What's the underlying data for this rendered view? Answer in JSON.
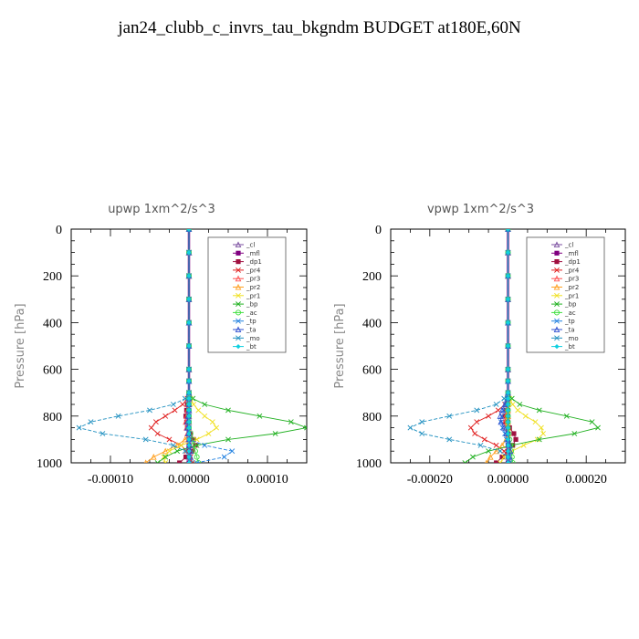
{
  "title": "jan24_clubb_c_invrs_tau_bkgndm  BUDGET at180E,60N",
  "chart_data": [
    {
      "type": "line",
      "title": "upwp   1xm^2/s^3",
      "ylabel": "Pressure [hPa]",
      "xlabel": "",
      "ylim": [
        1000,
        0
      ],
      "xlim": [
        -0.00015,
        0.00015
      ],
      "y_ticks": [
        0,
        200,
        400,
        600,
        800,
        1000
      ],
      "x_ticks": [
        -0.0001,
        0,
        0.0001
      ],
      "x_tick_labels": [
        "-0.00010",
        "0.00000",
        "0.00010"
      ],
      "legend_position": "top-right",
      "y": [
        0,
        100,
        200,
        300,
        400,
        500,
        600,
        650,
        700,
        725,
        750,
        775,
        800,
        825,
        850,
        875,
        900,
        925,
        950,
        975,
        1000
      ],
      "series": [
        {
          "name": "_cl",
          "color": "#7b4fa0",
          "marker": "triangle",
          "values": [
            0,
            0,
            0,
            0,
            0,
            0,
            0,
            0,
            0,
            0,
            0,
            0,
            0,
            0,
            0,
            0,
            0,
            0,
            0,
            0,
            0
          ]
        },
        {
          "name": "_mfl",
          "color": "#800080",
          "marker": "square",
          "values": [
            0,
            0,
            0,
            0,
            0,
            0,
            0,
            0,
            0,
            0,
            0,
            0,
            0,
            0,
            0,
            0,
            0,
            0,
            0,
            0,
            0
          ]
        },
        {
          "name": "_dp1",
          "color": "#a01040",
          "marker": "square",
          "values": [
            0,
            0,
            0,
            0,
            0,
            0,
            0,
            0,
            0,
            -1e-06,
            -2e-06,
            -3e-06,
            -4e-06,
            -3e-06,
            -2e-06,
            2e-06,
            6e-06,
            8e-06,
            4e-06,
            -4e-06,
            -1.2e-05
          ]
        },
        {
          "name": "_pr4",
          "color": "#e02020",
          "marker": "x",
          "values": [
            0,
            0,
            0,
            0,
            0,
            0,
            0,
            0,
            0,
            -2e-06,
            -8e-06,
            -1.8e-05,
            -3e-05,
            -4.2e-05,
            -4.8e-05,
            -4e-05,
            -2.5e-05,
            -1e-05,
            -3e-06,
            2e-06,
            4e-06
          ]
        },
        {
          "name": "_pr3",
          "color": "#ff5050",
          "marker": "triangle",
          "values": [
            0,
            0,
            0,
            0,
            0,
            0,
            0,
            0,
            0,
            0,
            -1e-06,
            -2e-06,
            -3e-06,
            -4e-06,
            -3e-06,
            -2e-06,
            -1e-06,
            1e-06,
            2e-06,
            2e-06,
            1e-06
          ]
        },
        {
          "name": "_pr2",
          "color": "#ffa020",
          "marker": "triangle",
          "values": [
            0,
            0,
            0,
            0,
            0,
            0,
            0,
            0,
            0,
            0,
            0,
            0,
            0,
            0,
            0,
            0,
            -5e-06,
            -1.5e-05,
            -3e-05,
            -4.5e-05,
            -5.5e-05
          ]
        },
        {
          "name": "_pr1",
          "color": "#f0e020",
          "marker": "x",
          "values": [
            0,
            0,
            0,
            0,
            0,
            0,
            0,
            0,
            0,
            2e-06,
            6e-06,
            1.2e-05,
            2e-05,
            3e-05,
            3.5e-05,
            2.5e-05,
            1e-05,
            -1e-05,
            -2.5e-05,
            -3.2e-05,
            -3e-05
          ]
        },
        {
          "name": "_bp",
          "color": "#20b020",
          "marker": "x",
          "values": [
            0,
            0,
            0,
            0,
            0,
            0,
            0,
            0,
            0,
            5e-06,
            2e-05,
            5e-05,
            9e-05,
            0.00013,
            0.00015,
            0.00011,
            5e-05,
            1e-05,
            -1.5e-05,
            -3e-05,
            -4e-05
          ]
        },
        {
          "name": "_ac",
          "color": "#40e040",
          "marker": "circle",
          "values": [
            0,
            0,
            0,
            0,
            0,
            0,
            0,
            0,
            0,
            0,
            0,
            0,
            0,
            0,
            0,
            2e-06,
            4e-06,
            6e-06,
            8e-06,
            1e-05,
            1.2e-05
          ]
        },
        {
          "name": "_tp",
          "color": "#2080e0",
          "marker": "x",
          "values": [
            0,
            0,
            0,
            0,
            0,
            0,
            0,
            0,
            0,
            0,
            0,
            0,
            0,
            0,
            0,
            0,
            0,
            2e-05,
            5.5e-05,
            4.5e-05,
            1e-05
          ]
        },
        {
          "name": "_ta",
          "color": "#3050d0",
          "marker": "triangle",
          "values": [
            0,
            0,
            0,
            0,
            0,
            0,
            0,
            0,
            0,
            0,
            0,
            0,
            -1e-06,
            -2e-06,
            -2e-06,
            -1e-06,
            0,
            1e-06,
            2e-06,
            2e-06,
            1e-06
          ]
        },
        {
          "name": "_mo",
          "color": "#2090c0",
          "marker": "x",
          "values": [
            0,
            0,
            0,
            0,
            0,
            0,
            0,
            0,
            0,
            -5e-06,
            -2e-05,
            -5e-05,
            -9e-05,
            -0.000125,
            -0.00014,
            -0.00011,
            -5.5e-05,
            -2e-05,
            -5e-06,
            0.0,
            2e-06
          ]
        },
        {
          "name": "_bt",
          "color": "#10d0e0",
          "marker": "diamond",
          "values": [
            0,
            0,
            0,
            0,
            0,
            0,
            0,
            0,
            0,
            0,
            0,
            0,
            0,
            0,
            0,
            0,
            0,
            0,
            0,
            0,
            0
          ]
        }
      ]
    },
    {
      "type": "line",
      "title": "vpwp   1xm^2/s^3",
      "ylabel": "Pressure [hPa]",
      "xlabel": "",
      "ylim": [
        1000,
        0
      ],
      "xlim": [
        -0.0003,
        0.0003
      ],
      "y_ticks": [
        0,
        200,
        400,
        600,
        800,
        1000
      ],
      "x_ticks": [
        -0.0002,
        0,
        0.0002
      ],
      "x_tick_labels": [
        "-0.00020",
        "0.00000",
        "0.00020"
      ],
      "legend_position": "top-right",
      "y": [
        0,
        100,
        200,
        300,
        400,
        500,
        600,
        650,
        700,
        725,
        750,
        775,
        800,
        825,
        850,
        875,
        900,
        925,
        950,
        975,
        1000
      ],
      "series": [
        {
          "name": "_cl",
          "color": "#7b4fa0",
          "marker": "triangle",
          "values": [
            0,
            0,
            0,
            0,
            0,
            0,
            0,
            0,
            0,
            0,
            0,
            0,
            0,
            0,
            0,
            0,
            0,
            0,
            0,
            0,
            0
          ]
        },
        {
          "name": "_mfl",
          "color": "#800080",
          "marker": "square",
          "values": [
            0,
            0,
            0,
            0,
            0,
            0,
            0,
            0,
            0,
            0,
            0,
            0,
            0,
            0,
            0,
            0,
            0,
            0,
            0,
            0,
            0
          ]
        },
        {
          "name": "_dp1",
          "color": "#a01040",
          "marker": "square",
          "values": [
            0,
            0,
            0,
            0,
            0,
            0,
            0,
            0,
            0,
            0,
            -2e-06,
            -5e-06,
            -8e-06,
            -6e-06,
            4e-06,
            1.5e-05,
            2e-05,
            1.2e-05,
            0.0,
            -1.5e-05,
            -3e-05
          ]
        },
        {
          "name": "_pr4",
          "color": "#e02020",
          "marker": "x",
          "values": [
            0,
            0,
            0,
            0,
            0,
            0,
            0,
            0,
            0,
            -2e-06,
            -8e-06,
            -2.5e-05,
            -5e-05,
            -8e-05,
            -9.5e-05,
            -8.5e-05,
            -6e-05,
            -3e-05,
            -1e-05,
            0.0,
            5e-06
          ]
        },
        {
          "name": "_pr3",
          "color": "#ff5050",
          "marker": "triangle",
          "values": [
            0,
            0,
            0,
            0,
            0,
            0,
            0,
            0,
            0,
            0,
            -2e-06,
            -4e-06,
            -6e-06,
            -8e-06,
            -6e-06,
            -4e-06,
            -2e-06,
            2e-06,
            4e-06,
            3e-06,
            2e-06
          ]
        },
        {
          "name": "_pr2",
          "color": "#ffa020",
          "marker": "triangle",
          "values": [
            0,
            0,
            0,
            0,
            0,
            0,
            0,
            0,
            0,
            0,
            0,
            0,
            0,
            0,
            0,
            0,
            -5e-06,
            -1.5e-05,
            -3e-05,
            -4.5e-05,
            -5.5e-05
          ]
        },
        {
          "name": "_pr1",
          "color": "#f0e020",
          "marker": "x",
          "values": [
            0,
            0,
            0,
            0,
            0,
            0,
            0,
            0,
            0,
            4e-06,
            1.2e-05,
            2.5e-05,
            4.5e-05,
            7e-05,
            8.5e-05,
            9e-05,
            7.5e-05,
            4e-05,
            1e-05,
            -1e-05,
            -2e-05
          ]
        },
        {
          "name": "_bp",
          "color": "#20b020",
          "marker": "x",
          "values": [
            0,
            0,
            0,
            0,
            0,
            0,
            0,
            0,
            0,
            1e-05,
            3e-05,
            8e-05,
            0.00015,
            0.000215,
            0.00023,
            0.00017,
            8e-05,
            1e-05,
            -5e-05,
            -9e-05,
            -0.00011
          ]
        },
        {
          "name": "_ac",
          "color": "#40e040",
          "marker": "circle",
          "values": [
            0,
            0,
            0,
            0,
            0,
            0,
            0,
            0,
            0,
            0,
            0,
            0,
            0,
            0,
            0,
            2e-06,
            4e-06,
            6e-06,
            8e-06,
            1e-05,
            1.2e-05
          ]
        },
        {
          "name": "_tp",
          "color": "#2080e0",
          "marker": "x",
          "values": [
            0,
            0,
            0,
            0,
            0,
            0,
            0,
            0,
            0,
            -2e-06,
            -6e-06,
            -1.2e-05,
            -1.6e-05,
            -1.8e-05,
            -1.4e-05,
            -8e-06,
            -4e-06,
            0.0,
            2e-06,
            2e-06,
            1e-06
          ]
        },
        {
          "name": "_ta",
          "color": "#3050d0",
          "marker": "triangle",
          "values": [
            0,
            0,
            0,
            0,
            0,
            0,
            0,
            0,
            0,
            -2e-06,
            -8e-06,
            -1.5e-05,
            -2e-05,
            -1.8e-05,
            -1e-05,
            -4e-06,
            0.0,
            4e-06,
            6e-06,
            4e-06,
            2e-06
          ]
        },
        {
          "name": "_mo",
          "color": "#2090c0",
          "marker": "x",
          "values": [
            0,
            0,
            0,
            0,
            0,
            0,
            0,
            0,
            0,
            -1e-05,
            -3e-05,
            -8e-05,
            -0.00015,
            -0.00022,
            -0.00025,
            -0.00022,
            -0.00015,
            -7e-05,
            -2e-05,
            0.0,
            5e-06
          ]
        },
        {
          "name": "_bt",
          "color": "#10d0e0",
          "marker": "diamond",
          "values": [
            0,
            0,
            0,
            0,
            0,
            0,
            0,
            0,
            0,
            0,
            0,
            0,
            0,
            0,
            0,
            0,
            0,
            0,
            0,
            0,
            0
          ]
        }
      ]
    }
  ]
}
